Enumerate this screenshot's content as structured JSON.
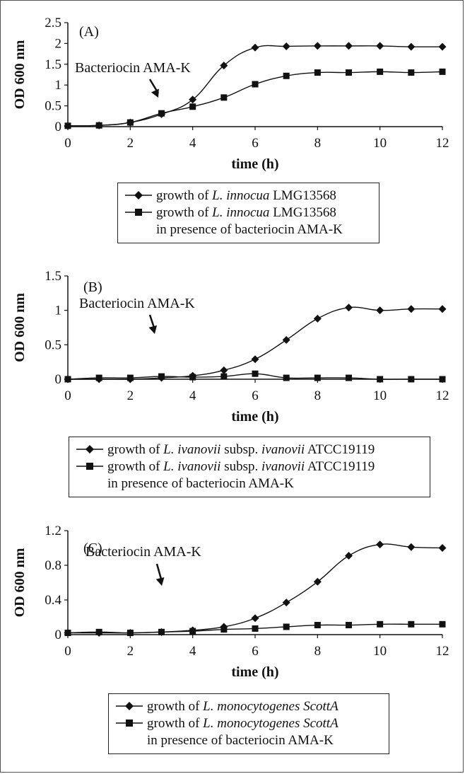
{
  "chart_data": [
    {
      "type": "line",
      "panel": "(A)",
      "xlabel": "time (h)",
      "ylabel": "OD 600 nm",
      "xlim": [
        0,
        12
      ],
      "ylim": [
        0,
        2.5
      ],
      "x_ticks": [
        "0",
        "2",
        "4",
        "6",
        "8",
        "10",
        "12"
      ],
      "y_ticks": [
        "0",
        "0.5",
        "1",
        "1.5",
        "2",
        "2.5"
      ],
      "annotation": "Bacteriocin AMA-K",
      "arrow_at_x": 3,
      "series": [
        {
          "name": "growth of L. innocua LMG13568",
          "marker": "diamond",
          "x": [
            0,
            1,
            2,
            3,
            4,
            5,
            6,
            7,
            8,
            9,
            10,
            11,
            12
          ],
          "y": [
            0.02,
            0.03,
            0.1,
            0.3,
            0.65,
            1.47,
            1.9,
            1.93,
            1.94,
            1.94,
            1.94,
            1.92,
            1.92
          ]
        },
        {
          "name": "growth of L. innocua LMG13568 in presence of bacteriocin AMA-K",
          "marker": "square",
          "x": [
            0,
            1,
            2,
            3,
            4,
            5,
            6,
            7,
            8,
            9,
            10,
            11,
            12
          ],
          "y": [
            0.02,
            0.03,
            0.1,
            0.32,
            0.48,
            0.7,
            1.02,
            1.22,
            1.3,
            1.3,
            1.32,
            1.3,
            1.32
          ]
        }
      ]
    },
    {
      "type": "line",
      "panel": "(B)",
      "xlabel": "time (h)",
      "ylabel": "OD 600 nm",
      "xlim": [
        0,
        12
      ],
      "ylim": [
        0,
        1.5
      ],
      "x_ticks": [
        "0",
        "2",
        "4",
        "6",
        "8",
        "10",
        "12"
      ],
      "y_ticks": [
        "0",
        "0.5",
        "1",
        "1.5"
      ],
      "annotation": "Bacteriocin AMA-K",
      "arrow_at_x": 3,
      "series": [
        {
          "name": "growth of L. ivanovii subsp. ivanovii ATCC19119",
          "marker": "diamond",
          "x": [
            0,
            1,
            2,
            3,
            4,
            5,
            6,
            7,
            8,
            9,
            10,
            11,
            12
          ],
          "y": [
            0.0,
            0.0,
            0.0,
            0.02,
            0.05,
            0.13,
            0.29,
            0.57,
            0.88,
            1.04,
            1.0,
            1.02,
            1.02
          ]
        },
        {
          "name": "growth of L. ivanovii subsp. ivanovii ATCC19119 in presence of bacteriocin AMA-K",
          "marker": "square",
          "x": [
            0,
            1,
            2,
            3,
            4,
            5,
            6,
            7,
            8,
            9,
            10,
            11,
            12
          ],
          "y": [
            0.0,
            0.02,
            0.02,
            0.04,
            0.03,
            0.04,
            0.08,
            0.02,
            0.02,
            0.02,
            0.0,
            0.0,
            0.0
          ]
        }
      ]
    },
    {
      "type": "line",
      "panel": "(C)",
      "xlabel": "time (h)",
      "ylabel": "OD 600 nm",
      "xlim": [
        0,
        12
      ],
      "ylim": [
        0,
        1.2
      ],
      "x_ticks": [
        "0",
        "2",
        "4",
        "6",
        "8",
        "10",
        "12"
      ],
      "y_ticks": [
        "0",
        "0.4",
        "0.8",
        "1.2"
      ],
      "annotation": "Bacteriocin AMA-K",
      "arrow_at_x": 3,
      "series": [
        {
          "name": "growth of L. monocytogenes ScottA",
          "marker": "diamond",
          "x": [
            0,
            1,
            2,
            3,
            4,
            5,
            6,
            7,
            8,
            9,
            10,
            11,
            12
          ],
          "y": [
            0.02,
            0.02,
            0.02,
            0.03,
            0.05,
            0.09,
            0.19,
            0.37,
            0.61,
            0.91,
            1.04,
            1.01,
            1.0
          ]
        },
        {
          "name": "growth of L. monocytogenes ScottA in presence of bacteriocin AMA-K",
          "marker": "square",
          "x": [
            0,
            1,
            2,
            3,
            4,
            5,
            6,
            7,
            8,
            9,
            10,
            11,
            12
          ],
          "y": [
            0.02,
            0.03,
            0.02,
            0.03,
            0.04,
            0.06,
            0.07,
            0.09,
            0.11,
            0.11,
            0.12,
            0.12,
            0.12
          ]
        }
      ]
    }
  ],
  "legends": [
    {
      "line1": {
        "pre": "growth of ",
        "ital": "L. innocua",
        "post": " LMG13568"
      },
      "line2": {
        "pre": "growth of ",
        "ital": "L. innocua",
        "post": " LMG13568"
      },
      "line2b": "in presence of bacteriocin AMA-K"
    },
    {
      "line1": {
        "pre": "growth of ",
        "ital": "L. ivanovii",
        "mid": " subsp. ",
        "ital2": "ivanovii",
        "post": " ATCC19119"
      },
      "line2": {
        "pre": "growth of ",
        "ital": "L. ivanovii",
        "mid": " subsp. ",
        "ital2": "ivanovii",
        "post": " ATCC19119"
      },
      "line2b": "in presence of bacteriocin AMA-K"
    },
    {
      "line1": {
        "pre": "growth of  ",
        "ital": "L. monocytogenes ScottA",
        "post": ""
      },
      "line2": {
        "pre": "growth of  ",
        "ital": "L. monocytogenes ScottA",
        "post": ""
      },
      "line2b": "in presence of bacteriocin AMA-K"
    }
  ]
}
